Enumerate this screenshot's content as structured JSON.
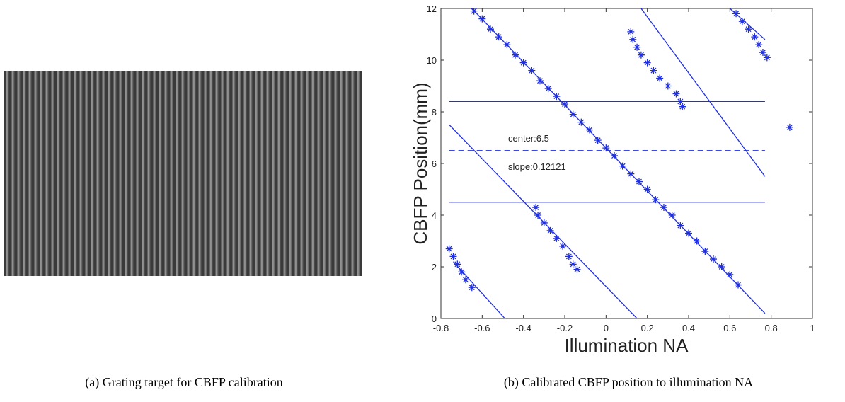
{
  "captions": [
    "(a) Grating target for CBFP calibration",
    "(b) Calibrated CBFP position to illumination NA"
  ],
  "chart_data": {
    "type": "scatter",
    "x_label": "Illumination NA",
    "y_label": "CBFP Position(mm)",
    "xlim": [
      -0.8,
      1
    ],
    "ylim": [
      0,
      12
    ],
    "xticks": [
      -0.8,
      -0.6,
      -0.4,
      -0.2,
      0,
      0.2,
      0.4,
      0.6,
      0.8,
      1
    ],
    "yticks": [
      0,
      2,
      4,
      6,
      8,
      10,
      12
    ],
    "annotations": [
      "center:6.5",
      "slope:0.12121"
    ],
    "series": [
      {
        "color": "#1f2fe0",
        "x": [
          -0.64,
          -0.6,
          -0.56,
          -0.52,
          -0.48,
          -0.44,
          -0.4,
          -0.36,
          -0.32,
          -0.28,
          -0.24,
          -0.2,
          -0.16,
          -0.12,
          -0.08,
          -0.04,
          0,
          0.04,
          0.08,
          0.12,
          0.16,
          0.2,
          0.24,
          0.28,
          0.32,
          0.36,
          0.4,
          0.44,
          0.48,
          0.52,
          0.56,
          0.6,
          0.64,
          -0.76,
          -0.74,
          -0.72,
          -0.7,
          -0.68,
          -0.65,
          -0.34,
          -0.33,
          -0.3,
          -0.27,
          -0.24,
          -0.21,
          -0.18,
          -0.16,
          -0.14,
          0.12,
          0.13,
          0.15,
          0.17,
          0.2,
          0.23,
          0.26,
          0.3,
          0.34,
          0.36,
          0.37,
          0.63,
          0.66,
          0.69,
          0.72,
          0.74,
          0.76,
          0.78,
          0.89
        ],
        "values": [
          11.9,
          11.6,
          11.2,
          10.9,
          10.6,
          10.2,
          9.9,
          9.6,
          9.2,
          8.9,
          8.6,
          8.3,
          7.9,
          7.6,
          7.3,
          6.9,
          6.6,
          6.3,
          5.9,
          5.6,
          5.3,
          5.0,
          4.6,
          4.3,
          4.0,
          3.6,
          3.3,
          3.0,
          2.6,
          2.3,
          2.0,
          1.7,
          1.3,
          2.7,
          2.4,
          2.1,
          1.8,
          1.5,
          1.2,
          4.3,
          4.0,
          3.7,
          3.4,
          3.1,
          2.8,
          2.4,
          2.1,
          1.9,
          11.1,
          10.8,
          10.5,
          10.2,
          9.9,
          9.6,
          9.3,
          9.0,
          8.7,
          8.4,
          8.2,
          11.8,
          11.5,
          11.2,
          10.9,
          10.6,
          10.3,
          10.1,
          7.4
        ]
      }
    ],
    "lines": [
      {
        "color": "#1f2fe0",
        "dashed": false,
        "x": [
          -0.65,
          0.77
        ],
        "values": [
          12,
          0.2
        ]
      },
      {
        "color": "#1f2fe0",
        "dashed": false,
        "x": [
          -0.76,
          0.15
        ],
        "values": [
          7.5,
          0
        ]
      },
      {
        "color": "#1f2fe0",
        "dashed": false,
        "x": [
          -0.74,
          -0.49
        ],
        "values": [
          2.2,
          0
        ]
      },
      {
        "color": "#1f2fe0",
        "dashed": false,
        "x": [
          0.17,
          0.77
        ],
        "values": [
          12,
          5.5
        ]
      },
      {
        "color": "#1f2fe0",
        "dashed": false,
        "x": [
          0.6,
          0.77
        ],
        "values": [
          12,
          10.8
        ]
      },
      {
        "color": "#1f2fe0",
        "dashed": false,
        "x": [
          -0.76,
          0.77
        ],
        "values": [
          8.4,
          8.4
        ]
      },
      {
        "color": "#1f2fe0",
        "dashed": true,
        "x": [
          -0.76,
          0.77
        ],
        "values": [
          6.5,
          6.5
        ]
      },
      {
        "color": "#1f2fe0",
        "dashed": false,
        "x": [
          -0.76,
          0.77
        ],
        "values": [
          4.5,
          4.5
        ]
      }
    ]
  }
}
